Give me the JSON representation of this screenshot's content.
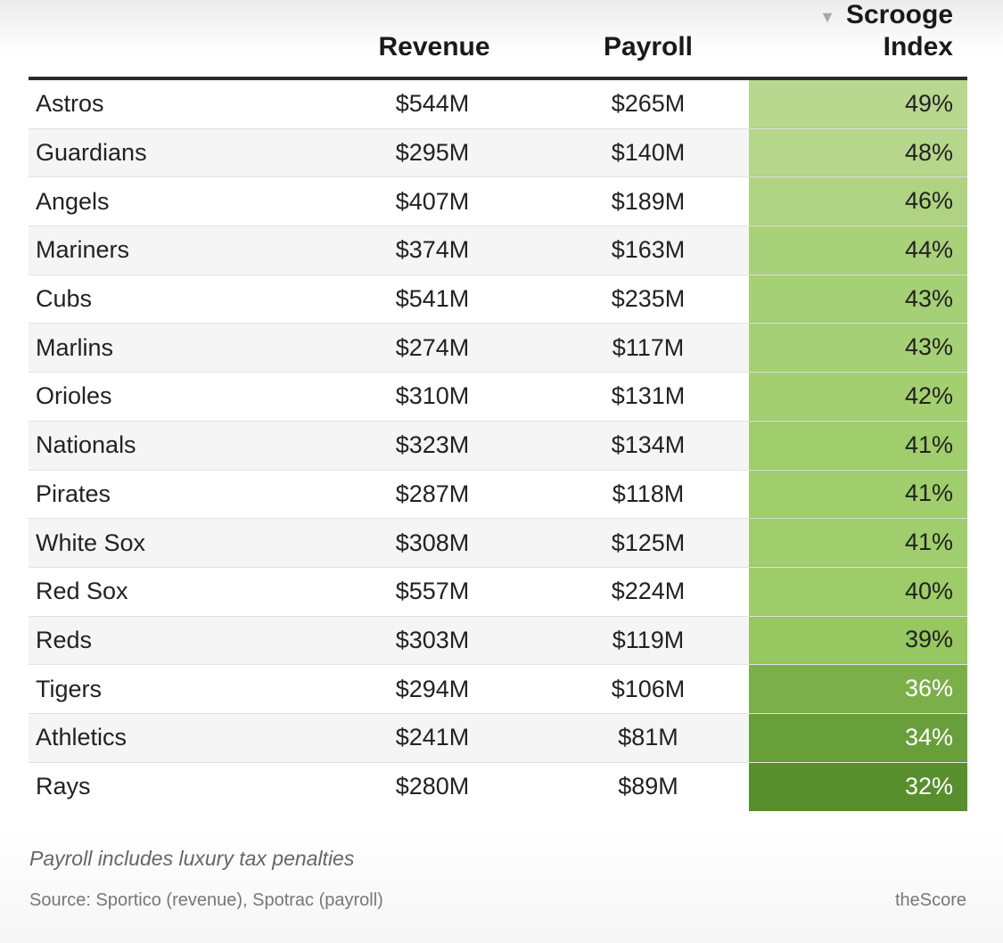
{
  "chart_data": {
    "type": "table",
    "columns": {
      "team": "",
      "revenue": "Revenue",
      "payroll": "Payroll",
      "index": "Scrooge Index"
    },
    "sort_indicator": "▼",
    "rows": [
      {
        "team": "Astros",
        "revenue": "$544M",
        "payroll": "$265M",
        "index": "49%",
        "index_value": 49
      },
      {
        "team": "Guardians",
        "revenue": "$295M",
        "payroll": "$140M",
        "index": "48%",
        "index_value": 48
      },
      {
        "team": "Angels",
        "revenue": "$407M",
        "payroll": "$189M",
        "index": "46%",
        "index_value": 46
      },
      {
        "team": "Mariners",
        "revenue": "$374M",
        "payroll": "$163M",
        "index": "44%",
        "index_value": 44
      },
      {
        "team": "Cubs",
        "revenue": "$541M",
        "payroll": "$235M",
        "index": "43%",
        "index_value": 43
      },
      {
        "team": "Marlins",
        "revenue": "$274M",
        "payroll": "$117M",
        "index": "43%",
        "index_value": 43
      },
      {
        "team": "Orioles",
        "revenue": "$310M",
        "payroll": "$131M",
        "index": "42%",
        "index_value": 42
      },
      {
        "team": "Nationals",
        "revenue": "$323M",
        "payroll": "$134M",
        "index": "41%",
        "index_value": 41
      },
      {
        "team": "Pirates",
        "revenue": "$287M",
        "payroll": "$118M",
        "index": "41%",
        "index_value": 41
      },
      {
        "team": "White Sox",
        "revenue": "$308M",
        "payroll": "$125M",
        "index": "41%",
        "index_value": 41
      },
      {
        "team": "Red Sox",
        "revenue": "$557M",
        "payroll": "$224M",
        "index": "40%",
        "index_value": 40
      },
      {
        "team": "Reds",
        "revenue": "$303M",
        "payroll": "$119M",
        "index": "39%",
        "index_value": 39
      },
      {
        "team": "Tigers",
        "revenue": "$294M",
        "payroll": "$106M",
        "index": "36%",
        "index_value": 36
      },
      {
        "team": "Athletics",
        "revenue": "$241M",
        "payroll": "$81M",
        "index": "34%",
        "index_value": 34
      },
      {
        "team": "Rays",
        "revenue": "$280M",
        "payroll": "$89M",
        "index": "32%",
        "index_value": 32
      }
    ],
    "color_scale": {
      "low_value": 32,
      "high_value": 49,
      "low_color": "#578f2c",
      "mid_color": "#9ccc66",
      "high_color": "#b8d78f",
      "dark_text_color": "#ffffff",
      "light_text_color": "#222222"
    }
  },
  "footnote": "Payroll includes luxury tax penalties",
  "source": "Source: Sportico (revenue), Spotrac (payroll)",
  "brand": "theScore"
}
